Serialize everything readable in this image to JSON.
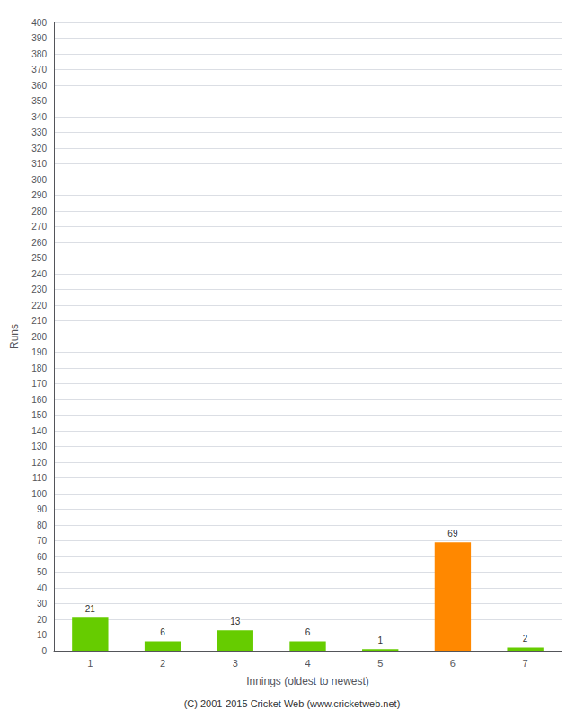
{
  "chart_data": {
    "type": "bar",
    "xlabel": "Innings (oldest to newest)",
    "ylabel": "Runs",
    "categories": [
      "1",
      "2",
      "3",
      "4",
      "5",
      "6",
      "7"
    ],
    "values": [
      21,
      6,
      13,
      6,
      1,
      69,
      2
    ],
    "colors": [
      "#66cc00",
      "#66cc00",
      "#66cc00",
      "#66cc00",
      "#66cc00",
      "#ff8800",
      "#66cc00"
    ],
    "ylim": [
      0,
      400
    ],
    "yticks": [
      0,
      10,
      20,
      30,
      40,
      50,
      60,
      70,
      80,
      90,
      100,
      110,
      120,
      130,
      140,
      150,
      160,
      170,
      180,
      190,
      200,
      210,
      220,
      230,
      240,
      250,
      260,
      270,
      280,
      290,
      300,
      310,
      320,
      330,
      340,
      350,
      360,
      370,
      380,
      390,
      400
    ],
    "grid": true,
    "data_labels": true,
    "annotation": "(C) 2001-2015 Cricket Web (www.cricketweb.net)"
  }
}
